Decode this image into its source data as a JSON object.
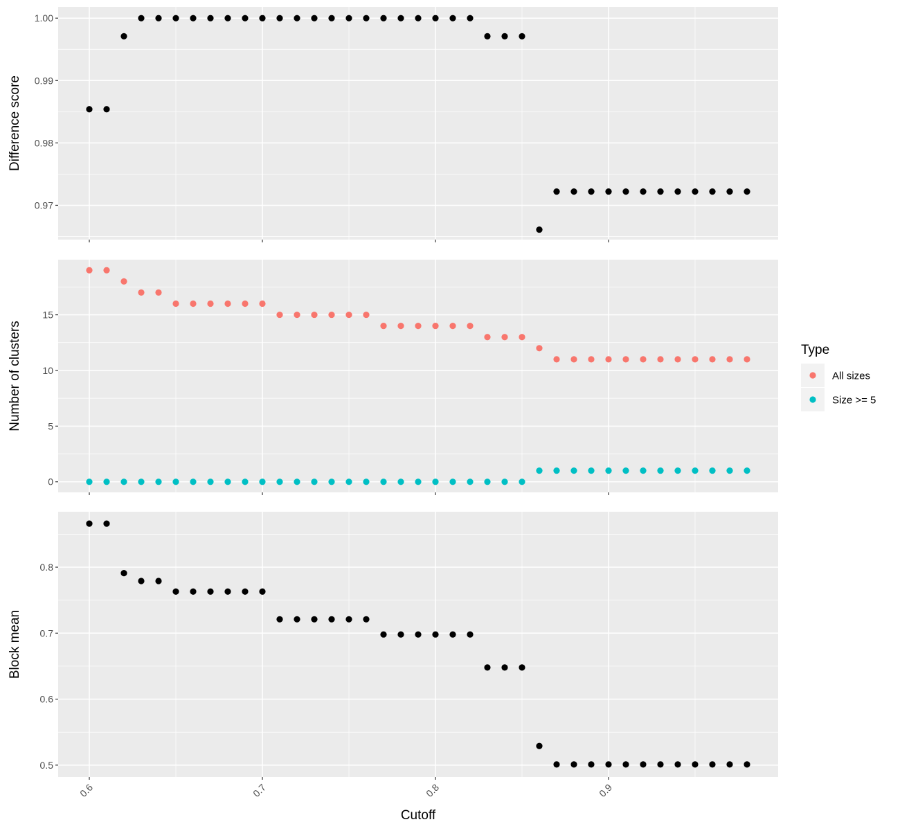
{
  "chart_data": {
    "type": "scatter",
    "xlabel": "Cutoff",
    "x": [
      0.6,
      0.61,
      0.62,
      0.63,
      0.64,
      0.65,
      0.66,
      0.67,
      0.68,
      0.69,
      0.7,
      0.71,
      0.72,
      0.73,
      0.74,
      0.75,
      0.76,
      0.77,
      0.78,
      0.79,
      0.8,
      0.81,
      0.82,
      0.83,
      0.84,
      0.85,
      0.86,
      0.87,
      0.88,
      0.89,
      0.9,
      0.91,
      0.92,
      0.93,
      0.94,
      0.95,
      0.96,
      0.97,
      0.98
    ],
    "x_ticks": [
      {
        "value": 0.6,
        "label": "0.6"
      },
      {
        "value": 0.7,
        "label": "0.7"
      },
      {
        "value": 0.8,
        "label": "0.8"
      },
      {
        "value": 0.9,
        "label": "0.9"
      }
    ],
    "xlim": [
      0.582,
      0.998
    ],
    "grid": true,
    "legend": {
      "title": "Type",
      "position": "right",
      "entries": [
        {
          "label": "All sizes",
          "color": "#F8766D"
        },
        {
          "label": "Size >= 5",
          "color": "#00BFC4"
        }
      ]
    },
    "panels": [
      {
        "ylabel": "Difference score",
        "ylim": [
          0.9645,
          1.0018
        ],
        "y_ticks": [
          {
            "value": 0.97,
            "label": "0.97"
          },
          {
            "value": 0.98,
            "label": "0.98"
          },
          {
            "value": 0.99,
            "label": "0.99"
          },
          {
            "value": 1.0,
            "label": "1.00"
          }
        ],
        "series": [
          {
            "color": "#000000",
            "values": [
              0.9854,
              0.9854,
              0.9971,
              1.0,
              1.0,
              1.0,
              1.0,
              1.0,
              1.0,
              1.0,
              1.0,
              1.0,
              1.0,
              1.0,
              1.0,
              1.0,
              1.0,
              1.0,
              1.0,
              1.0,
              1.0,
              1.0,
              1.0,
              0.9971,
              0.9971,
              0.9971,
              0.9661,
              0.9722,
              0.9722,
              0.9722,
              0.9722,
              0.9722,
              0.9722,
              0.9722,
              0.9722,
              0.9722,
              0.9722,
              0.9722,
              0.9722
            ]
          }
        ]
      },
      {
        "ylabel": "Number of clusters",
        "ylim": [
          -0.95,
          19.95
        ],
        "y_ticks": [
          {
            "value": 0,
            "label": "0"
          },
          {
            "value": 5,
            "label": "5"
          },
          {
            "value": 10,
            "label": "10"
          },
          {
            "value": 15,
            "label": "15"
          }
        ],
        "series": [
          {
            "name": "All sizes",
            "color": "#F8766D",
            "values": [
              19,
              19,
              18,
              17,
              17,
              16,
              16,
              16,
              16,
              16,
              16,
              15,
              15,
              15,
              15,
              15,
              15,
              14,
              14,
              14,
              14,
              14,
              14,
              13,
              13,
              13,
              12,
              11,
              11,
              11,
              11,
              11,
              11,
              11,
              11,
              11,
              11,
              11,
              11
            ]
          },
          {
            "name": "Size >= 5",
            "color": "#00BFC4",
            "values": [
              0,
              0,
              0,
              0,
              0,
              0,
              0,
              0,
              0,
              0,
              0,
              0,
              0,
              0,
              0,
              0,
              0,
              0,
              0,
              0,
              0,
              0,
              0,
              0,
              0,
              0,
              1,
              1,
              1,
              1,
              1,
              1,
              1,
              1,
              1,
              1,
              1,
              1,
              1
            ]
          }
        ]
      },
      {
        "ylabel": "Block mean",
        "ylim": [
          0.482,
          0.884
        ],
        "y_ticks": [
          {
            "value": 0.5,
            "label": "0.5"
          },
          {
            "value": 0.6,
            "label": "0.6"
          },
          {
            "value": 0.7,
            "label": "0.7"
          },
          {
            "value": 0.8,
            "label": "0.8"
          }
        ],
        "series": [
          {
            "color": "#000000",
            "values": [
              0.866,
              0.866,
              0.791,
              0.779,
              0.779,
              0.763,
              0.763,
              0.763,
              0.763,
              0.763,
              0.763,
              0.721,
              0.721,
              0.721,
              0.721,
              0.721,
              0.721,
              0.698,
              0.698,
              0.698,
              0.698,
              0.698,
              0.698,
              0.648,
              0.648,
              0.648,
              0.529,
              0.501,
              0.501,
              0.501,
              0.501,
              0.501,
              0.501,
              0.501,
              0.501,
              0.501,
              0.501,
              0.501,
              0.501
            ]
          }
        ]
      }
    ]
  }
}
